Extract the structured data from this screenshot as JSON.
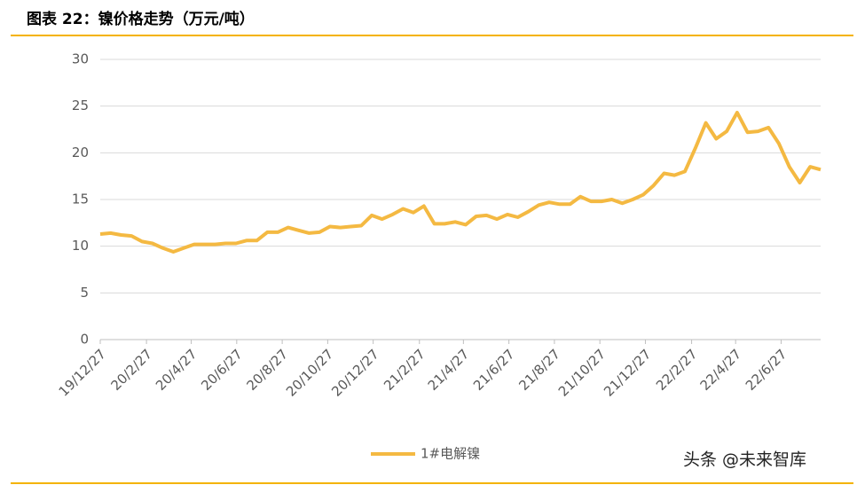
{
  "chart_data": {
    "type": "line",
    "title": "图表 22：镍价格走势（万元/吨）",
    "watermark": "头条 @未来智库",
    "x": [
      "19/12/27",
      "20/1/10",
      "20/1/24",
      "20/2/7",
      "20/2/21",
      "20/3/6",
      "20/3/20",
      "20/4/3",
      "20/4/17",
      "20/5/1",
      "20/5/15",
      "20/5/29",
      "20/6/12",
      "20/6/26",
      "20/7/10",
      "20/7/24",
      "20/8/7",
      "20/8/21",
      "20/9/4",
      "20/9/18",
      "20/10/2",
      "20/10/16",
      "20/10/30",
      "20/11/13",
      "20/11/27",
      "20/12/11",
      "20/12/25",
      "21/1/8",
      "21/1/22",
      "21/2/5",
      "21/2/19",
      "21/3/5",
      "21/3/19",
      "21/4/2",
      "21/4/16",
      "21/4/30",
      "21/5/14",
      "21/5/28",
      "21/6/11",
      "21/6/25",
      "21/7/9",
      "21/7/23",
      "21/8/6",
      "21/8/20",
      "21/9/3",
      "21/9/17",
      "21/10/1",
      "21/10/15",
      "21/10/29",
      "21/11/12",
      "21/11/26",
      "21/12/10",
      "21/12/24",
      "22/1/7",
      "22/1/21",
      "22/2/4",
      "22/2/18",
      "22/3/4",
      "22/3/18",
      "22/4/1",
      "22/4/15",
      "22/4/29",
      "22/5/13",
      "22/5/27",
      "22/6/10",
      "22/6/24",
      "22/7/8",
      "22/7/22",
      "22/8/5",
      "22/8/19"
    ],
    "series": [
      {
        "name": "1#电解镍",
        "color": "#f4b942",
        "values": [
          11.3,
          11.4,
          11.2,
          11.1,
          10.5,
          10.3,
          9.8,
          9.4,
          9.8,
          10.2,
          10.2,
          10.2,
          10.3,
          10.3,
          10.6,
          10.6,
          11.5,
          11.5,
          12.0,
          11.7,
          11.4,
          11.5,
          12.1,
          12.0,
          12.1,
          12.2,
          13.3,
          12.9,
          13.4,
          14.0,
          13.6,
          14.3,
          12.4,
          12.4,
          12.6,
          12.3,
          13.2,
          13.3,
          12.9,
          13.4,
          13.1,
          13.7,
          14.4,
          14.7,
          14.5,
          14.5,
          15.3,
          14.8,
          14.8,
          15.0,
          14.6,
          15.0,
          15.5,
          16.5,
          17.8,
          17.6,
          18.0,
          20.5,
          23.2,
          21.5,
          22.3,
          24.3,
          22.2,
          22.3,
          22.7,
          21.0,
          18.5,
          16.8,
          18.5,
          18.2
        ]
      }
    ],
    "xlim": [
      "19/12/27",
      "22/8/19"
    ],
    "xticks": [
      "19/12/27",
      "20/2/27",
      "20/4/27",
      "20/6/27",
      "20/8/27",
      "20/10/27",
      "20/12/27",
      "21/2/27",
      "21/4/27",
      "21/6/27",
      "21/8/27",
      "21/10/27",
      "21/12/27",
      "22/2/27",
      "22/4/27",
      "22/6/27"
    ],
    "ylim": [
      0,
      30
    ],
    "yticks": [
      0,
      5,
      10,
      15,
      20,
      25,
      30
    ],
    "grid": true
  }
}
